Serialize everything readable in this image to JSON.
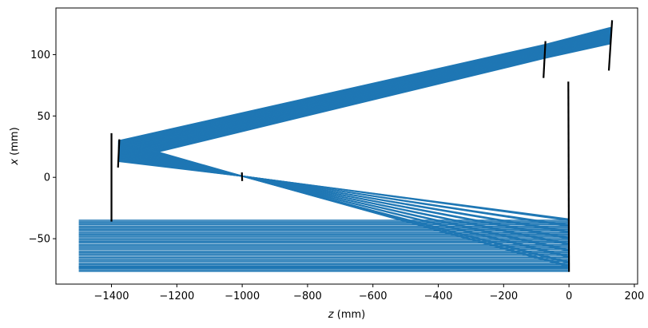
{
  "chart_data": {
    "type": "line",
    "xlabel": "z (mm)",
    "ylabel": "x (mm)",
    "xlim": [
      -1570,
      210
    ],
    "ylim": [
      -87,
      138
    ],
    "xticks": [
      -1400,
      -1200,
      -1000,
      -800,
      -600,
      -400,
      -200,
      0,
      200
    ],
    "yticks": [
      -50,
      0,
      50,
      100
    ],
    "xtick_labels": [
      "−1400",
      "−1200",
      "−1000",
      "−800",
      "−600",
      "−400",
      "−200",
      "0",
      "200"
    ],
    "ytick_labels": [
      "−50",
      "0",
      "50",
      "100"
    ],
    "grid": false,
    "ray_color": "#1f77b4",
    "element_color": "#000000",
    "rays": {
      "start_z": -1500,
      "input_x": [
        -35,
        -40,
        -45,
        -50,
        -55,
        -60,
        -65,
        -70,
        -73
      ],
      "mirror1": {
        "z": -1378,
        "x_top": 28,
        "x_bottom": 13
      },
      "focus": {
        "z": -1000,
        "x": 1
      },
      "end_z": 0,
      "end_x": [
        -34,
        -39,
        -44,
        -49,
        -54,
        -59,
        -64,
        -69,
        -72
      ],
      "fold1": {
        "z": -75,
        "x_top": 107,
        "x_bottom": 97
      },
      "fold2": {
        "z": 128,
        "x_top": 121,
        "x_bottom": 109
      }
    },
    "elements": [
      {
        "name": "stop",
        "z1": -1400,
        "x1": -36,
        "z2": -1400,
        "x2": 36
      },
      {
        "name": "mirror-a",
        "z1": -1380,
        "x1": 8,
        "z2": -1376,
        "x2": 31
      },
      {
        "name": "focal-mark",
        "z1": -1000,
        "x1": -3,
        "z2": -1001,
        "x2": 4
      },
      {
        "name": "detector",
        "z1": 0,
        "x1": -77,
        "z2": -2,
        "x2": 78
      },
      {
        "name": "mirror-b",
        "z1": -78,
        "x1": 81,
        "z2": -72,
        "x2": 111
      },
      {
        "name": "mirror-c",
        "z1": 122,
        "x1": 87,
        "z2": 132,
        "x2": 128
      }
    ]
  }
}
